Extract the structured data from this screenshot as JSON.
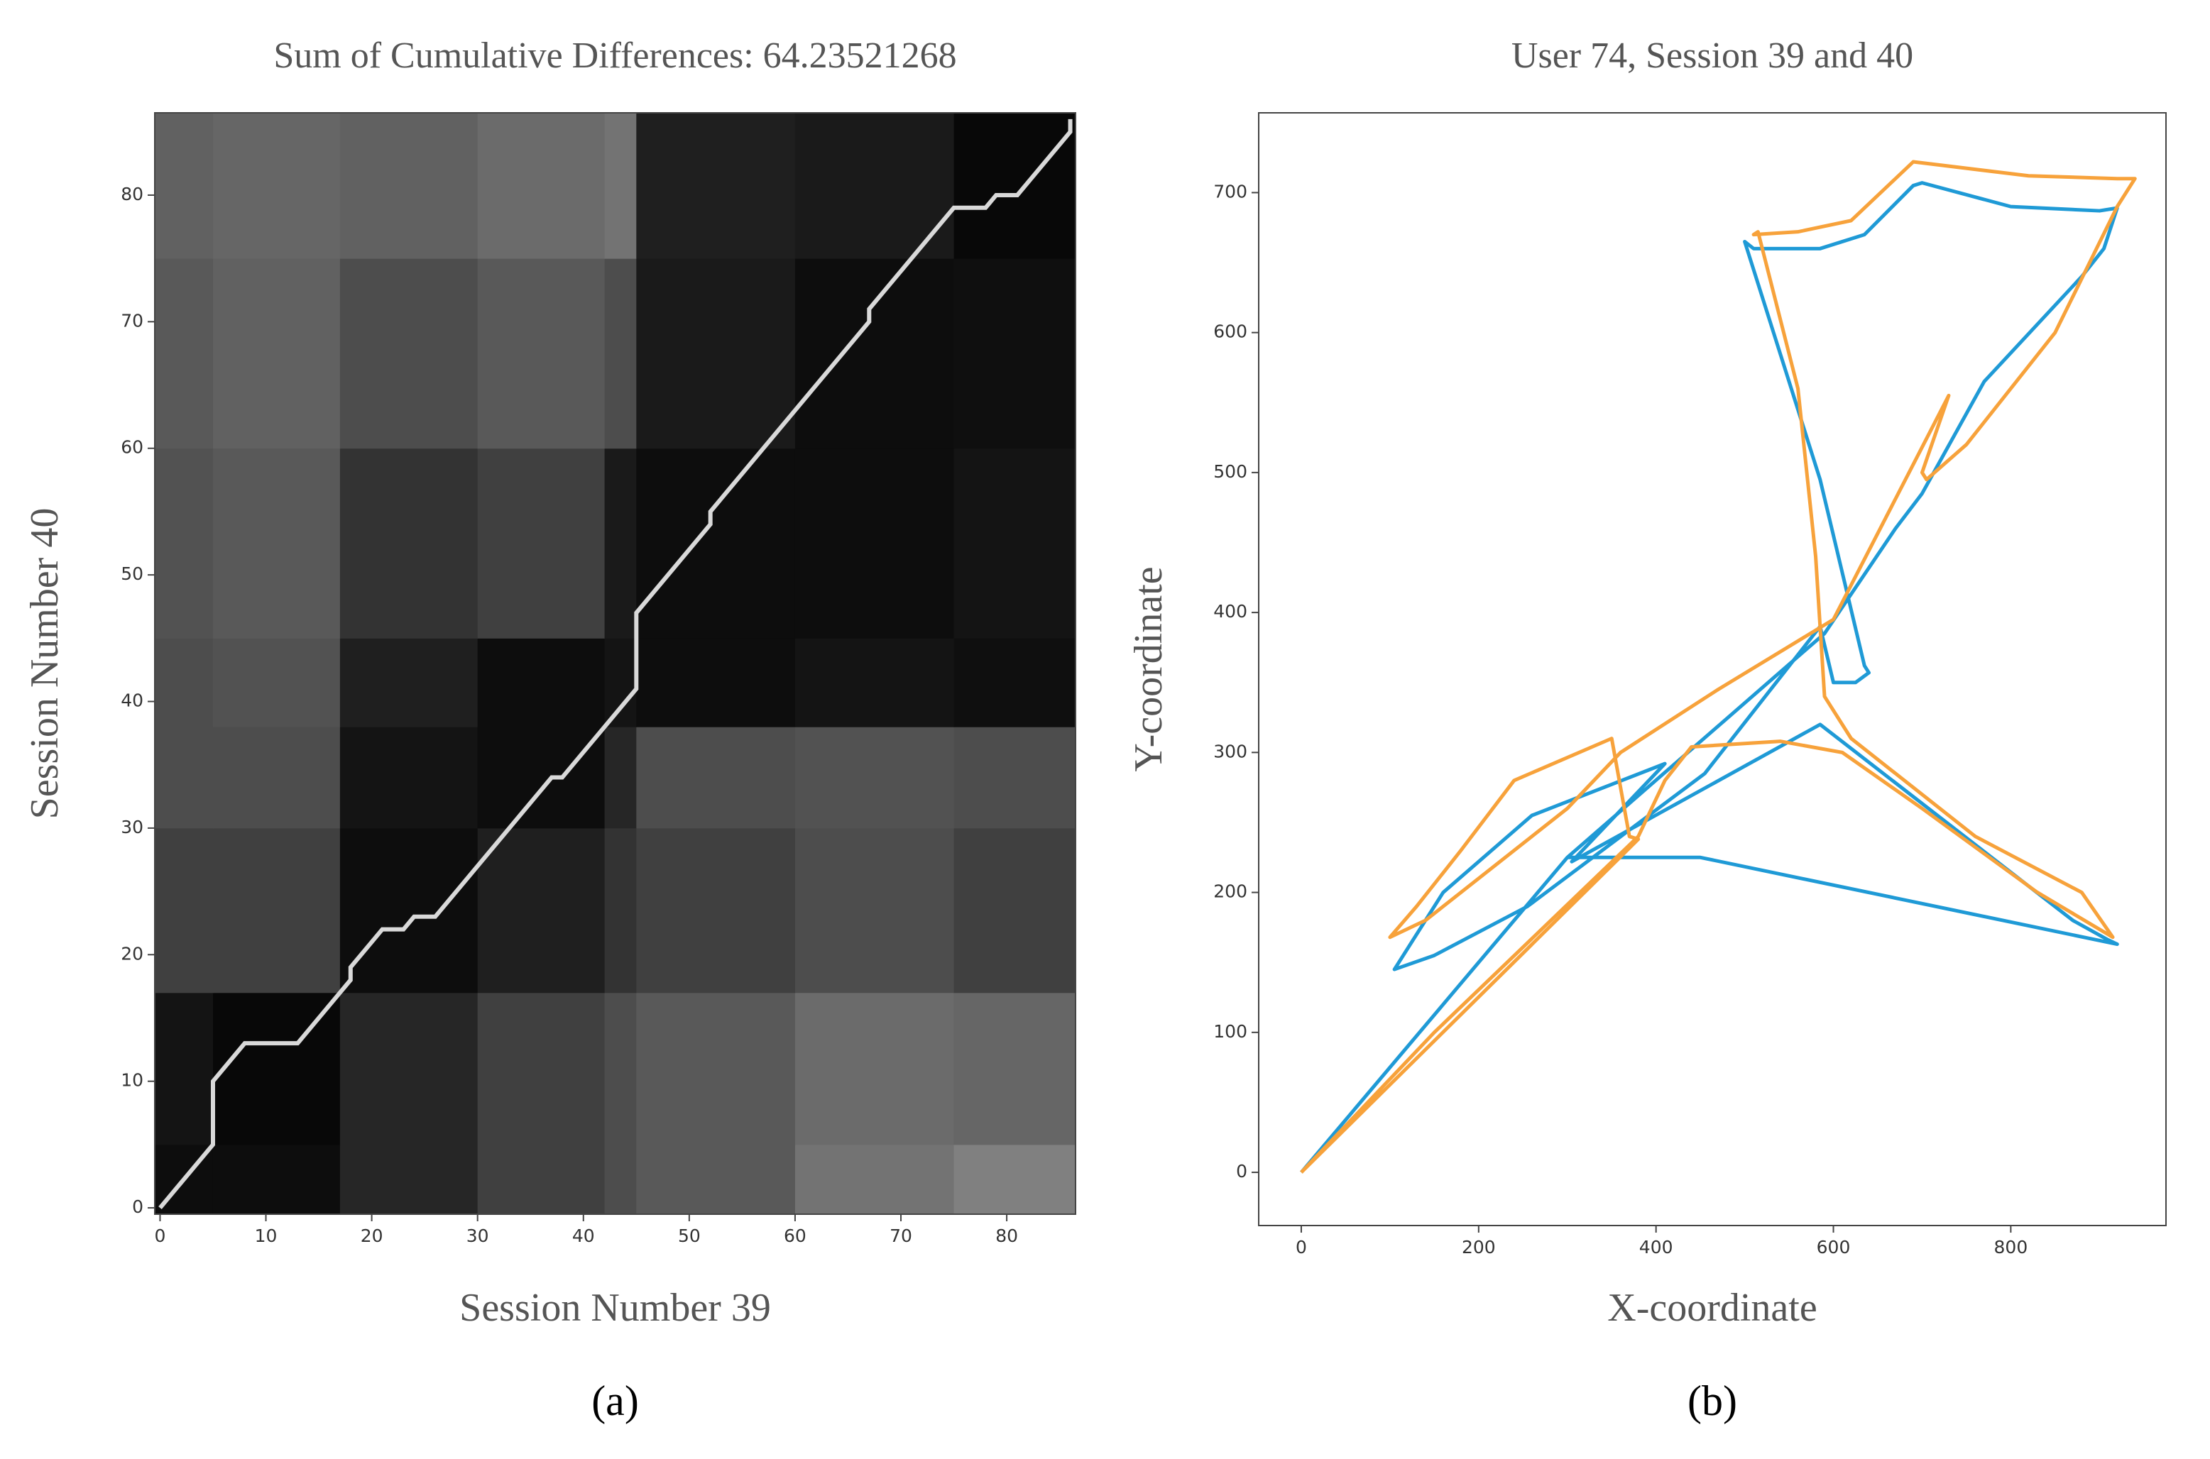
{
  "chart_data": [
    {
      "type": "heatmap",
      "title": "Sum of Cumulative Differences: 64.23521268",
      "x_label": "Session Number 39",
      "y_label": "Session Number 40",
      "caption": "(a)",
      "xlim": [
        -0.5,
        86.5
      ],
      "ylim": [
        -0.5,
        86.5
      ],
      "xticks": [
        0,
        10,
        20,
        30,
        40,
        50,
        60,
        70,
        80
      ],
      "yticks": [
        0,
        10,
        20,
        30,
        40,
        50,
        60,
        70,
        80
      ],
      "xbins": [
        -0.5,
        5,
        17,
        30,
        42,
        45,
        60,
        75,
        86.5
      ],
      "ybins": [
        -0.5,
        5,
        17,
        30,
        38,
        45,
        60,
        75,
        86.5
      ],
      "z": [
        [
          0.05,
          0.05,
          0.15,
          0.25,
          0.3,
          0.35,
          0.45,
          0.5
        ],
        [
          0.08,
          0.03,
          0.15,
          0.25,
          0.3,
          0.35,
          0.42,
          0.4
        ],
        [
          0.25,
          0.25,
          0.05,
          0.12,
          0.2,
          0.25,
          0.3,
          0.25
        ],
        [
          0.3,
          0.3,
          0.08,
          0.05,
          0.15,
          0.3,
          0.32,
          0.3
        ],
        [
          0.3,
          0.32,
          0.12,
          0.05,
          0.08,
          0.05,
          0.08,
          0.06
        ],
        [
          0.32,
          0.35,
          0.2,
          0.25,
          0.1,
          0.05,
          0.05,
          0.08
        ],
        [
          0.35,
          0.38,
          0.3,
          0.35,
          0.3,
          0.1,
          0.05,
          0.06
        ],
        [
          0.38,
          0.4,
          0.38,
          0.42,
          0.45,
          0.12,
          0.1,
          0.03
        ]
      ],
      "path": {
        "color": "#d9d9d9",
        "x": [
          0,
          5,
          5,
          8,
          13,
          18,
          18,
          21,
          23,
          24,
          26,
          37,
          38,
          45,
          45,
          52,
          52,
          67,
          67,
          75,
          78,
          79,
          81,
          86,
          86
        ],
        "y": [
          0,
          5,
          10,
          13,
          13,
          18,
          19,
          22,
          22,
          23,
          23,
          34,
          34,
          41,
          47,
          54,
          55,
          70,
          71,
          79,
          79,
          80,
          80,
          85,
          86
        ]
      }
    },
    {
      "type": "line",
      "title": "User 74, Session 39 and 40",
      "x_label": "X-coordinate",
      "y_label": "Y-coordinate",
      "caption": "(b)",
      "xlim": [
        -48,
        975
      ],
      "ylim": [
        -38,
        757
      ],
      "xticks": [
        0,
        200,
        400,
        600,
        800
      ],
      "yticks": [
        0,
        100,
        200,
        300,
        400,
        500,
        600,
        700
      ],
      "series": [
        {
          "color": "#1f9ad6",
          "x": [
            0,
            300,
            450,
            920,
            910,
            870,
            585,
            305,
            410,
            260,
            160,
            105,
            150,
            255,
            455,
            585,
            600,
            625,
            640,
            635,
            585,
            500,
            510,
            585,
            635,
            690,
            700,
            800,
            900,
            920,
            905,
            880,
            770,
            700,
            670,
            590,
            300
          ],
          "y": [
            0,
            225,
            225,
            163,
            166,
            180,
            320,
            222,
            292,
            255,
            200,
            145,
            155,
            190,
            285,
            390,
            350,
            350,
            357,
            362,
            495,
            665,
            660,
            660,
            670,
            705,
            707,
            690,
            687,
            689,
            660,
            640,
            565,
            485,
            460,
            385,
            225
          ]
        },
        {
          "color": "#f7a23b",
          "x": [
            0,
            380,
            370,
            350,
            240,
            180,
            130,
            100,
            140,
            300,
            360,
            470,
            600,
            730,
            700,
            705,
            750,
            850,
            920,
            940,
            920,
            820,
            690,
            620,
            560,
            510,
            515,
            560,
            580,
            590,
            620,
            760,
            880,
            915,
            830,
            700,
            610,
            540,
            440,
            410,
            380,
            150,
            0
          ],
          "y": [
            0,
            238,
            240,
            310,
            280,
            230,
            190,
            168,
            180,
            260,
            300,
            345,
            395,
            555,
            500,
            495,
            520,
            600,
            690,
            710,
            710,
            712,
            722,
            680,
            672,
            670,
            672,
            560,
            440,
            340,
            310,
            240,
            200,
            168,
            200,
            260,
            300,
            308,
            304,
            280,
            240,
            100,
            0
          ]
        }
      ]
    }
  ]
}
